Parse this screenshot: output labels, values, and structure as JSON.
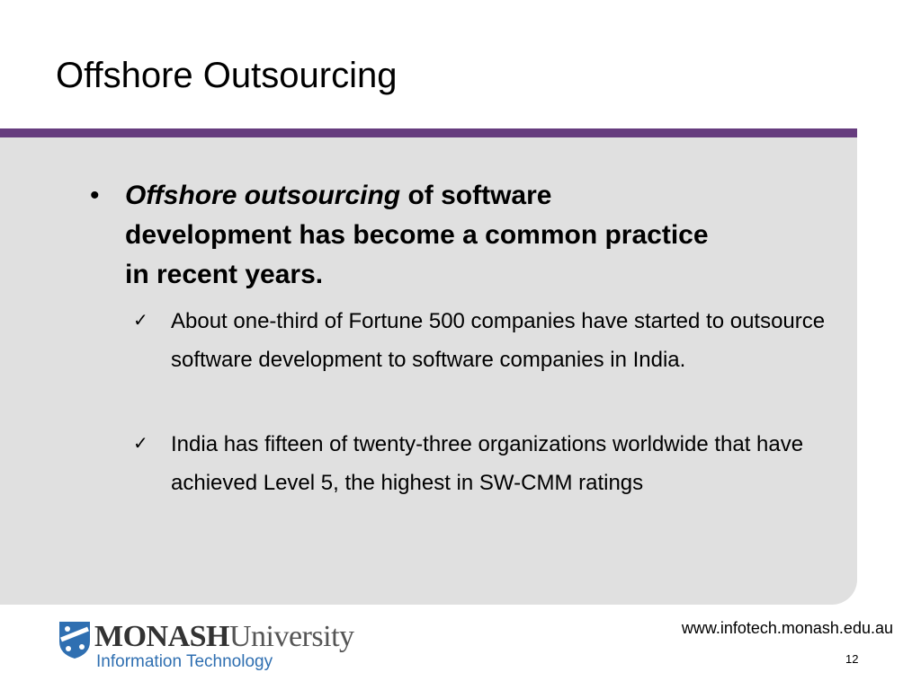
{
  "title": "Offshore Outsourcing",
  "bullet": {
    "emphasis": "Offshore outsourcing",
    "text": " of software development has become a common practice in recent years."
  },
  "subpoints": [
    "About one-third of Fortune 500 companies have started to outsource software development to software companies in India.",
    "India has fifteen of twenty-three organizations worldwide that have achieved Level 5, the highest in SW-CMM ratings"
  ],
  "footer": {
    "logo": {
      "name": "MONASH",
      "suffix": "University",
      "subtitle": "Information Technology"
    },
    "url": "www.infotech.monash.edu.au",
    "page_number": "12"
  }
}
